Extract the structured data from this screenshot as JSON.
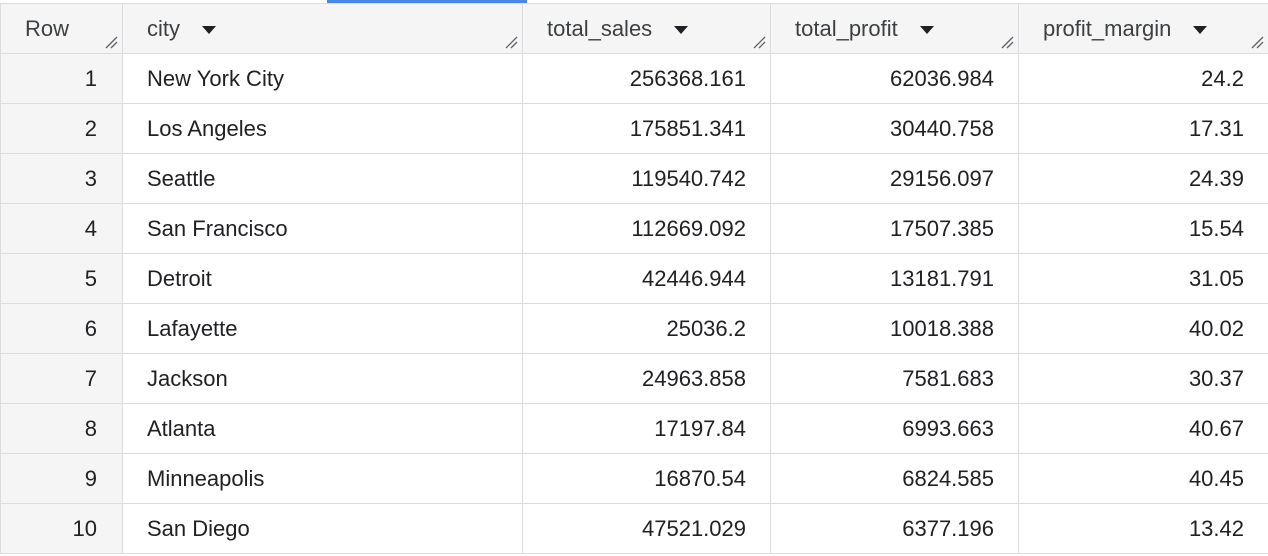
{
  "table": {
    "columns": [
      {
        "label": "Row",
        "has_menu": false
      },
      {
        "label": "city",
        "has_menu": true
      },
      {
        "label": "total_sales",
        "has_menu": true
      },
      {
        "label": "total_profit",
        "has_menu": true
      },
      {
        "label": "profit_margin",
        "has_menu": true
      }
    ],
    "rows": [
      {
        "row": "1",
        "city": "New York City",
        "total_sales": "256368.161",
        "total_profit": "62036.984",
        "profit_margin": "24.2"
      },
      {
        "row": "2",
        "city": "Los Angeles",
        "total_sales": "175851.341",
        "total_profit": "30440.758",
        "profit_margin": "17.31"
      },
      {
        "row": "3",
        "city": "Seattle",
        "total_sales": "119540.742",
        "total_profit": "29156.097",
        "profit_margin": "24.39"
      },
      {
        "row": "4",
        "city": "San Francisco",
        "total_sales": "112669.092",
        "total_profit": "17507.385",
        "profit_margin": "15.54"
      },
      {
        "row": "5",
        "city": "Detroit",
        "total_sales": "42446.944",
        "total_profit": "13181.791",
        "profit_margin": "31.05"
      },
      {
        "row": "6",
        "city": "Lafayette",
        "total_sales": "25036.2",
        "total_profit": "10018.388",
        "profit_margin": "40.02"
      },
      {
        "row": "7",
        "city": "Jackson",
        "total_sales": "24963.858",
        "total_profit": "7581.683",
        "profit_margin": "30.37"
      },
      {
        "row": "8",
        "city": "Atlanta",
        "total_sales": "17197.84",
        "total_profit": "6993.663",
        "profit_margin": "40.67"
      },
      {
        "row": "9",
        "city": "Minneapolis",
        "total_sales": "16870.54",
        "total_profit": "6824.585",
        "profit_margin": "40.45"
      },
      {
        "row": "10",
        "city": "San Diego",
        "total_sales": "47521.029",
        "total_profit": "6377.196",
        "profit_margin": "13.42"
      }
    ]
  },
  "colors": {
    "header_bg": "#f5f5f5",
    "border": "#dadce0",
    "accent": "#4a86e8",
    "text": "#202124"
  },
  "icons": {
    "sort_menu": "caret-down-icon",
    "column_resize": "resize-handle-icon"
  }
}
